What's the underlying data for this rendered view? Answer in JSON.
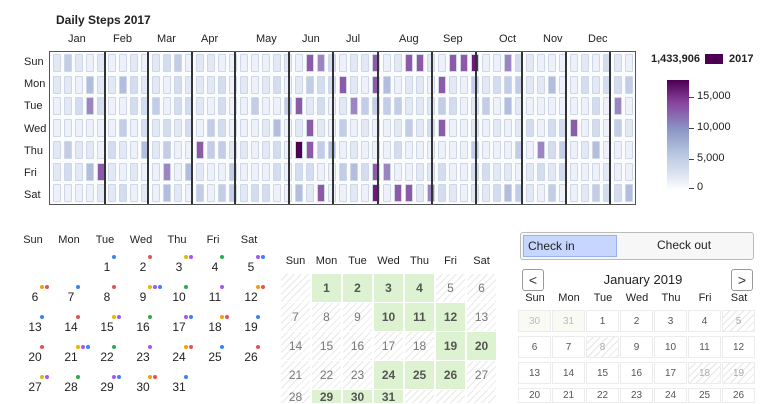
{
  "heatmap": {
    "title": "Daily Steps 2017",
    "months": [
      "Jan",
      "Feb",
      "Mar",
      "Apr",
      "May",
      "Jun",
      "Jul",
      "Aug",
      "Sep",
      "Oct",
      "Nov",
      "Dec"
    ],
    "weekdays": [
      "Sun",
      "Mon",
      "Tue",
      "Wed",
      "Thu",
      "Fri",
      "Sat"
    ],
    "legend": {
      "total": "1,433,906",
      "year": "2017",
      "ticks": [
        "15,000",
        "10,000",
        "5,000",
        "0"
      ]
    },
    "colors": {
      "low": "#ffffff",
      "mid": "#8c96c6",
      "high": "#4d0052"
    }
  },
  "calendar_dots": {
    "weekdays": [
      "Sun",
      "Mon",
      "Tue",
      "Wed",
      "Thu",
      "Fri",
      "Sat"
    ],
    "days": [
      "1",
      "2",
      "3",
      "4",
      "5",
      "6",
      "7",
      "8",
      "9",
      "10",
      "11",
      "12",
      "13",
      "14",
      "15",
      "16",
      "17",
      "18",
      "19",
      "20",
      "21",
      "22",
      "23",
      "24",
      "25",
      "26",
      "27",
      "28",
      "29",
      "30",
      "31"
    ],
    "dot_colors": [
      "#3b82f6",
      "#e55353",
      "#e6b800",
      "#2eaa4a",
      "#a855f7",
      "#f59e0b"
    ]
  },
  "calendar_grid": {
    "weekdays": [
      "Sun",
      "Mon",
      "Tue",
      "Wed",
      "Thu",
      "Fri",
      "Sat"
    ],
    "rows": [
      [
        "",
        "1",
        "2",
        "3",
        "4",
        "5",
        "6"
      ],
      [
        "7",
        "8",
        "9",
        "10",
        "11",
        "12",
        "13"
      ],
      [
        "14",
        "15",
        "16",
        "17",
        "18",
        "19",
        "20"
      ],
      [
        "21",
        "22",
        "23",
        "24",
        "25",
        "26",
        "27"
      ],
      [
        "28",
        "29",
        "30",
        "31",
        "",
        "",
        ""
      ]
    ]
  },
  "range_picker": {
    "checkin_label": "Check in",
    "checkout_label": "Check out",
    "prev": "<",
    "next": ">",
    "month_title": "January 2019",
    "weekdays": [
      "Sun",
      "Mon",
      "Tue",
      "Wed",
      "Thu",
      "Fri",
      "Sat"
    ],
    "rows": [
      [
        "30",
        "31",
        "1",
        "2",
        "3",
        "4",
        "5"
      ],
      [
        "6",
        "7",
        "8",
        "9",
        "10",
        "11",
        "12"
      ],
      [
        "13",
        "14",
        "15",
        "16",
        "17",
        "18",
        "19"
      ],
      [
        "20",
        "21",
        "22",
        "23",
        "24",
        "25",
        "26"
      ]
    ]
  }
}
